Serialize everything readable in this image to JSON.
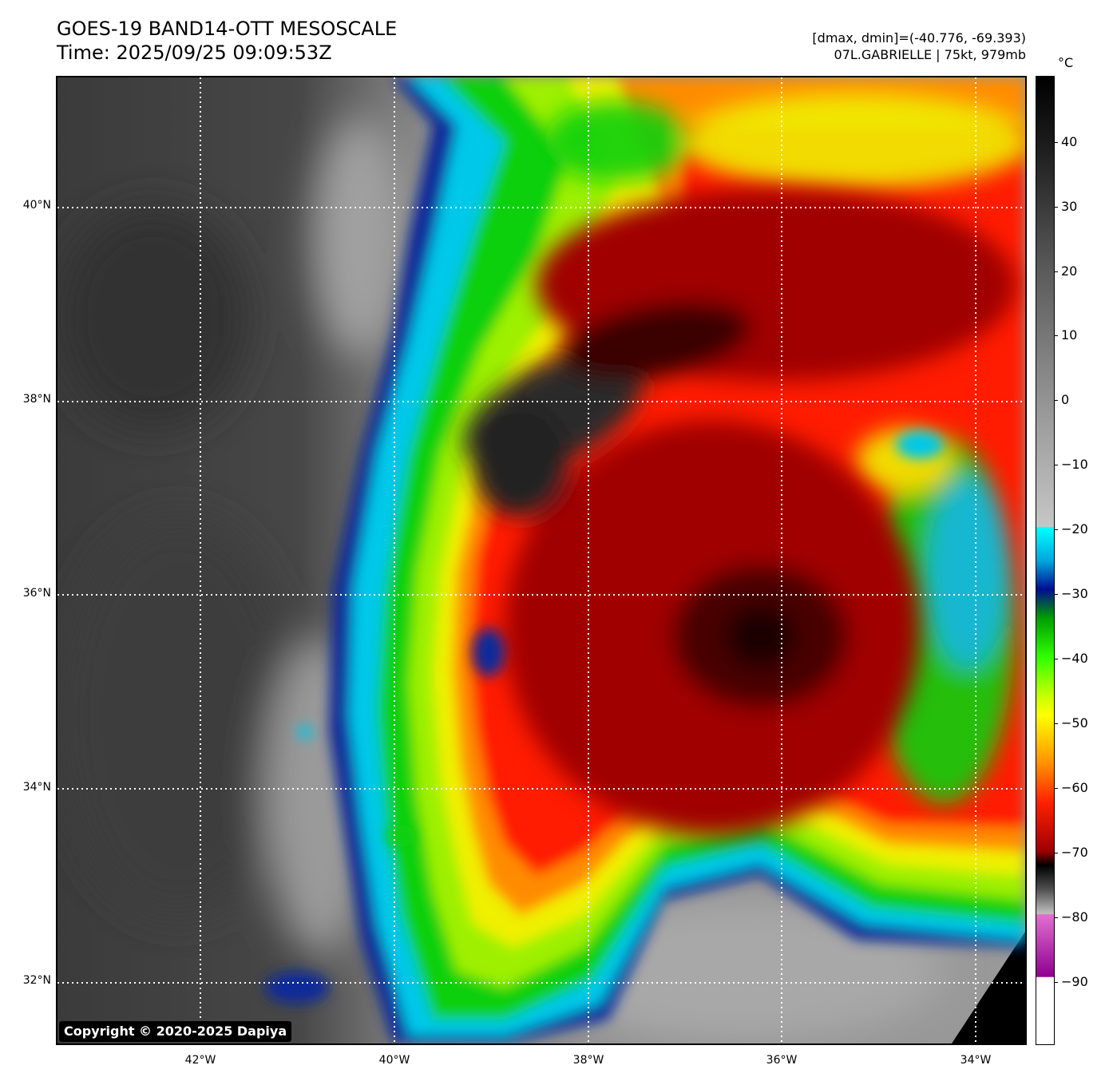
{
  "title": {
    "line1": "GOES-19 BAND14-OTT MESOSCALE",
    "line2": "Time: 2025/09/25 09:09:53Z"
  },
  "meta": {
    "range": "[dmax, dmin]=(-40.776, -69.393)",
    "storm": "07L.GABRIELLE | 75kt, 979mb"
  },
  "copyright": "Copyright © 2020-2025 Dapiya",
  "lat_labels": [
    "40°N",
    "38°N",
    "36°N",
    "34°N",
    "32°N"
  ],
  "lon_labels": [
    "42°W",
    "40°W",
    "38°W",
    "36°W",
    "34°W"
  ],
  "colorbar": {
    "unit": "°C",
    "ticks": [
      "40",
      "30",
      "20",
      "10",
      "0",
      "−10",
      "−20",
      "−30",
      "−40",
      "−50",
      "−60",
      "−70",
      "−80",
      "−90"
    ]
  }
}
